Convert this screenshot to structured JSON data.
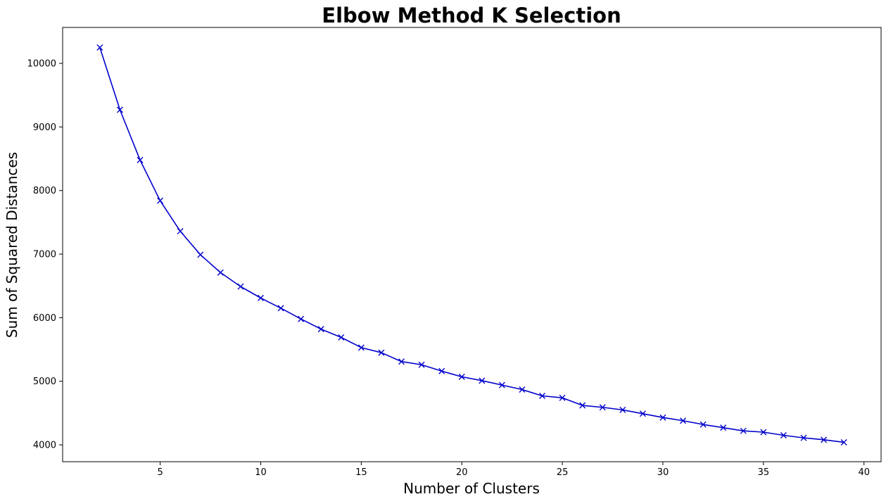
{
  "chart_data": {
    "type": "line",
    "title": "Elbow Method K Selection",
    "xlabel": "Number of Clusters",
    "ylabel": "Sum of Squared Distances",
    "xlim": [
      0.15,
      40.85
    ],
    "ylim": [
      3735,
      10565
    ],
    "xticks": [
      5,
      10,
      15,
      20,
      25,
      30,
      35,
      40
    ],
    "yticks": [
      4000,
      5000,
      6000,
      7000,
      8000,
      9000,
      10000
    ],
    "grid": false,
    "series": [
      {
        "color": "#0000cc",
        "marker": "x",
        "x": [
          2,
          3,
          4,
          5,
          6,
          7,
          8,
          9,
          10,
          11,
          12,
          13,
          14,
          15,
          16,
          17,
          18,
          19,
          20,
          21,
          22,
          23,
          24,
          25,
          26,
          27,
          28,
          29,
          30,
          31,
          32,
          33,
          34,
          35,
          36,
          37,
          38,
          39
        ],
        "y": [
          10250,
          9270,
          8480,
          7840,
          7360,
          6990,
          6710,
          6490,
          6310,
          6150,
          5980,
          5820,
          5690,
          5530,
          5450,
          5310,
          5260,
          5160,
          5070,
          5010,
          4940,
          4870,
          4770,
          4740,
          4620,
          4590,
          4550,
          4490,
          4430,
          4380,
          4320,
          4270,
          4220,
          4200,
          4150,
          4110,
          4080,
          4040
        ]
      }
    ]
  }
}
